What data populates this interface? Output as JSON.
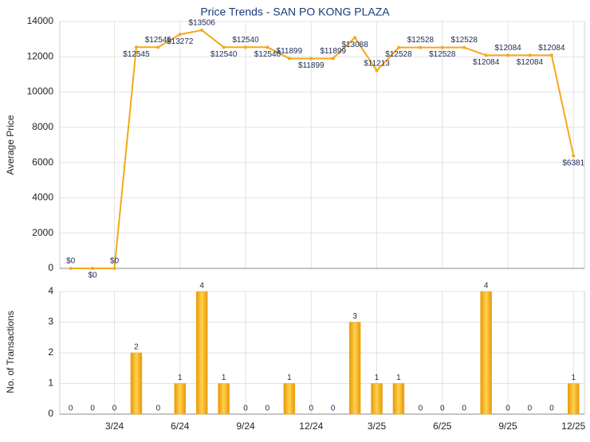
{
  "chart_data": [
    {
      "type": "line",
      "title": "Price Trends - SAN PO KONG PLAZA",
      "ylabel": "Average Price",
      "color": "#f5a818",
      "values": [
        0,
        0,
        0,
        12545,
        12545,
        13272,
        13506,
        12540,
        12540,
        12540,
        11899,
        11899,
        11899,
        13088,
        11213,
        12528,
        12528,
        12528,
        12528,
        12084,
        12084,
        12084,
        12084,
        6381
      ],
      "value_labels": [
        "$0",
        "$0",
        "$0",
        "$12545",
        "$12545",
        "$13272",
        "$13506",
        "$12540",
        "$12540",
        "$12540",
        "$11899",
        "$11899",
        "$11899",
        "$13088",
        "$11213",
        "$12528",
        "$12528",
        "$12528",
        "$12528",
        "$12084",
        "$12084",
        "$12084",
        "$12084",
        "$6381"
      ],
      "ylim": [
        0,
        14000
      ],
      "yticks": [
        0,
        2000,
        4000,
        6000,
        8000,
        10000,
        12000,
        14000
      ],
      "grid": true
    },
    {
      "type": "bar",
      "ylabel": "No. of Transactions",
      "color": "#f5a818",
      "categories": [
        null,
        null,
        "3/24",
        null,
        null,
        "6/24",
        null,
        null,
        "9/24",
        null,
        null,
        "12/24",
        null,
        null,
        "3/25",
        null,
        null,
        "6/25",
        null,
        null,
        "9/25",
        null,
        null,
        "12/25"
      ],
      "values": [
        0,
        0,
        0,
        2,
        0,
        1,
        4,
        1,
        0,
        0,
        1,
        0,
        0,
        3,
        1,
        1,
        0,
        0,
        0,
        4,
        0,
        0,
        0,
        1
      ],
      "ylim": [
        0,
        4
      ],
      "yticks": [
        0,
        1,
        2,
        3,
        4
      ],
      "grid": true
    }
  ]
}
